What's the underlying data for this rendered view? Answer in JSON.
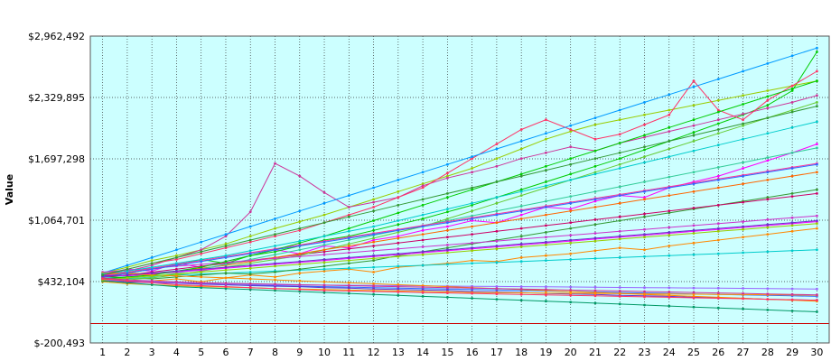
{
  "chart_data": {
    "type": "line",
    "title": "",
    "xlabel": "",
    "ylabel": "Value",
    "x": [
      1,
      2,
      3,
      4,
      5,
      6,
      7,
      8,
      9,
      10,
      11,
      12,
      13,
      14,
      15,
      16,
      17,
      18,
      19,
      20,
      21,
      22,
      23,
      24,
      25,
      26,
      27,
      28,
      29,
      30
    ],
    "x_tick_labels": [
      "1",
      "2",
      "3",
      "4",
      "5",
      "6",
      "7",
      "8",
      "9",
      "10",
      "11",
      "12",
      "13",
      "14",
      "15",
      "16",
      "17",
      "18",
      "19",
      "20",
      "21",
      "22",
      "23",
      "24",
      "25",
      "26",
      "27",
      "28",
      "29",
      "30"
    ],
    "y_tick_labels": [
      "$-200,493",
      "$432,104",
      "$1,064,701",
      "$1,697,298",
      "$2,329,895",
      "$2,962,492"
    ],
    "y_ticks": [
      -200493,
      432104,
      1064701,
      1697298,
      2329895,
      2962492
    ],
    "ylim": [
      -200493,
      2962492
    ],
    "xlim": [
      0.5,
      30.5
    ],
    "grid": true,
    "legend": "none",
    "plot_background": "#ccffff",
    "reference_line": {
      "value": 0,
      "color": "#cc0000"
    },
    "series_colors": [
      "#ff00ff",
      "#00cc00",
      "#ff8800",
      "#3366ff",
      "#99cc00",
      "#cc3399",
      "#00cccc",
      "#6633cc",
      "#ff3366",
      "#339933",
      "#ff9900",
      "#0099ff",
      "#cc0066",
      "#66cc33",
      "#9966ff",
      "#ff6600",
      "#33cc99",
      "#cc33cc",
      "#009966",
      "#ff3399"
    ],
    "series": [
      {
        "values": [
          500000,
          560000,
          540000,
          620000,
          580000,
          640000,
          700000,
          760000,
          720000,
          800000,
          780000,
          860000,
          900000,
          960000,
          1000000,
          1060000,
          1040000,
          1120000,
          1200000,
          1180000,
          1260000,
          1320000,
          1300000,
          1400000,
          1460000,
          1520000,
          1600000,
          1680000,
          1760000,
          1850000
        ]
      },
      {
        "values": [
          480000,
          520000,
          560000,
          600000,
          660000,
          620000,
          700000,
          740000,
          800000,
          860000,
          900000,
          960000,
          1020000,
          1080000,
          1150000,
          1220000,
          1300000,
          1380000,
          1460000,
          1540000,
          1620000,
          1700000,
          1790000,
          1880000,
          1970000,
          2060000,
          2150000,
          2250000,
          2400000,
          2800000
        ]
      },
      {
        "values": [
          450000,
          420000,
          440000,
          460000,
          430000,
          470000,
          500000,
          480000,
          520000,
          540000,
          560000,
          530000,
          580000,
          600000,
          620000,
          650000,
          640000,
          680000,
          700000,
          720000,
          750000,
          780000,
          760000,
          800000,
          830000,
          860000,
          890000,
          920000,
          950000,
          980000
        ]
      },
      {
        "values": [
          460000,
          440000,
          430000,
          420000,
          410000,
          400000,
          395000,
          390000,
          385000,
          380000,
          375000,
          370000,
          365000,
          360000,
          355000,
          350000,
          345000,
          340000,
          335000,
          330000,
          325000,
          320000,
          315000,
          310000,
          305000,
          300000,
          295000,
          290000,
          285000,
          280000
        ]
      },
      {
        "values": [
          520000,
          580000,
          650000,
          700000,
          760000,
          820000,
          900000,
          980000,
          1050000,
          1120000,
          1200000,
          1280000,
          1360000,
          1440000,
          1520000,
          1600000,
          1700000,
          1800000,
          1900000,
          1980000,
          2050000,
          2100000,
          2150000,
          2200000,
          2250000,
          2300000,
          2350000,
          2400000,
          2450000,
          2500000
        ]
      },
      {
        "values": [
          500000,
          540000,
          600000,
          680000,
          760000,
          900000,
          1150000,
          1650000,
          1520000,
          1350000,
          1200000,
          1250000,
          1300000,
          1420000,
          1500000,
          1560000,
          1620000,
          1700000,
          1760000,
          1820000,
          1780000,
          1860000,
          1920000,
          1980000,
          2040000,
          2100000,
          2160000,
          2220000,
          2280000,
          2350000
        ]
      },
      {
        "values": [
          470000,
          480000,
          490000,
          500000,
          510000,
          520000,
          530000,
          540000,
          550000,
          560000,
          570000,
          580000,
          590000,
          600000,
          610000,
          620000,
          630000,
          640000,
          650000,
          660000,
          670000,
          680000,
          690000,
          700000,
          710000,
          720000,
          730000,
          740000,
          750000,
          760000
        ]
      },
      {
        "values": [
          440000,
          430000,
          420000,
          415000,
          405000,
          400000,
          390000,
          385000,
          380000,
          370000,
          365000,
          355000,
          350000,
          345000,
          340000,
          330000,
          325000,
          320000,
          310000,
          305000,
          300000,
          290000,
          285000,
          280000,
          270000,
          265000,
          260000,
          250000,
          245000,
          240000
        ]
      },
      {
        "values": [
          510000,
          560000,
          620000,
          660000,
          720000,
          780000,
          840000,
          900000,
          960000,
          1040000,
          1120000,
          1200000,
          1300000,
          1400000,
          1550000,
          1700000,
          1850000,
          2000000,
          2100000,
          2000000,
          1900000,
          1950000,
          2050000,
          2150000,
          2500000,
          2200000,
          2100000,
          2300000,
          2450000,
          2600000
        ]
      },
      {
        "values": [
          490000,
          470000,
          460000,
          480000,
          500000,
          520000,
          510000,
          530000,
          560000,
          590000,
          620000,
          650000,
          700000,
          740000,
          780000,
          820000,
          860000,
          900000,
          940000,
          980000,
          1020000,
          1060000,
          1100000,
          1140000,
          1180000,
          1220000,
          1260000,
          1300000,
          1340000,
          1380000
        ]
      },
      {
        "values": [
          430000,
          410000,
          400000,
          390000,
          380000,
          375000,
          370000,
          360000,
          355000,
          350000,
          345000,
          340000,
          335000,
          330000,
          325000,
          320000,
          318000,
          316000,
          314000,
          312000,
          310000,
          308000,
          306000,
          304000,
          302000,
          300000,
          298000,
          296000,
          294000,
          292000
        ]
      },
      {
        "values": [
          520000,
          600000,
          680000,
          760000,
          840000,
          920000,
          1000000,
          1080000,
          1160000,
          1240000,
          1320000,
          1400000,
          1480000,
          1560000,
          1640000,
          1720000,
          1800000,
          1880000,
          1960000,
          2040000,
          2120000,
          2200000,
          2280000,
          2360000,
          2440000,
          2520000,
          2600000,
          2680000,
          2760000,
          2840000
        ]
      },
      {
        "values": [
          480000,
          500000,
          530000,
          560000,
          590000,
          620000,
          650000,
          680000,
          710000,
          740000,
          770000,
          800000,
          830000,
          860000,
          890000,
          920000,
          950000,
          980000,
          1010000,
          1040000,
          1070000,
          1100000,
          1130000,
          1160000,
          1190000,
          1220000,
          1250000,
          1280000,
          1310000,
          1340000
        ]
      },
      {
        "values": [
          460000,
          450000,
          470000,
          500000,
          540000,
          580000,
          620000,
          660000,
          700000,
          760000,
          820000,
          880000,
          940000,
          1000000,
          1080000,
          1160000,
          1240000,
          1320000,
          1400000,
          1480000,
          1560000,
          1640000,
          1720000,
          1800000,
          1880000,
          1960000,
          2040000,
          2120000,
          2200000,
          2280000
        ]
      },
      {
        "values": [
          450000,
          440000,
          430000,
          420000,
          415000,
          410000,
          405000,
          400000,
          398000,
          396000,
          394000,
          392000,
          390000,
          388000,
          386000,
          384000,
          382000,
          380000,
          378000,
          376000,
          374000,
          372000,
          370000,
          368000,
          366000,
          364000,
          362000,
          360000,
          358000,
          356000
        ]
      },
      {
        "values": [
          500000,
          520000,
          510000,
          540000,
          570000,
          600000,
          640000,
          680000,
          720000,
          760000,
          800000,
          840000,
          880000,
          920000,
          960000,
          1000000,
          1040000,
          1080000,
          1120000,
          1160000,
          1200000,
          1240000,
          1280000,
          1320000,
          1360000,
          1400000,
          1440000,
          1480000,
          1520000,
          1560000
        ]
      },
      {
        "values": [
          470000,
          460000,
          480000,
          520000,
          560000,
          610000,
          660000,
          710000,
          760000,
          810000,
          860000,
          910000,
          960000,
          1010000,
          1060000,
          1110000,
          1160000,
          1210000,
          1260000,
          1310000,
          1360000,
          1410000,
          1460000,
          1510000,
          1560000,
          1610000,
          1660000,
          1710000,
          1760000,
          1810000
        ]
      },
      {
        "values": [
          530000,
          550000,
          570000,
          590000,
          610000,
          630000,
          650000,
          670000,
          690000,
          710000,
          730000,
          750000,
          770000,
          790000,
          810000,
          830000,
          850000,
          870000,
          890000,
          910000,
          930000,
          950000,
          970000,
          990000,
          1010000,
          1030000,
          1050000,
          1070000,
          1090000,
          1110000
        ]
      },
      {
        "values": [
          440000,
          420000,
          400000,
          380000,
          370000,
          360000,
          350000,
          340000,
          330000,
          320000,
          310000,
          300000,
          290000,
          280000,
          270000,
          260000,
          250000,
          240000,
          230000,
          220000,
          210000,
          200000,
          190000,
          180000,
          170000,
          160000,
          150000,
          140000,
          130000,
          120000
        ]
      },
      {
        "values": [
          490000,
          530000,
          570000,
          610000,
          650000,
          690000,
          730000,
          770000,
          810000,
          850000,
          890000,
          930000,
          970000,
          1010000,
          1050000,
          1090000,
          1130000,
          1170000,
          1210000,
          1250000,
          1290000,
          1330000,
          1370000,
          1410000,
          1450000,
          1490000,
          1530000,
          1570000,
          1610000,
          1650000
        ]
      },
      {
        "values": [
          500000,
          490000,
          510000,
          530000,
          550000,
          570000,
          590000,
          610000,
          630000,
          650000,
          670000,
          690000,
          710000,
          730000,
          750000,
          770000,
          790000,
          810000,
          830000,
          850000,
          870000,
          890000,
          910000,
          930000,
          950000,
          970000,
          990000,
          1010000,
          1030000,
          1050000
        ]
      },
      {
        "values": [
          460000,
          480000,
          500000,
          540000,
          580000,
          640000,
          700000,
          760000,
          830000,
          900000,
          980000,
          1060000,
          1140000,
          1220000,
          1300000,
          1380000,
          1460000,
          1540000,
          1620000,
          1700000,
          1780000,
          1860000,
          1940000,
          2020000,
          2100000,
          2180000,
          2260000,
          2340000,
          2420000,
          2500000
        ]
      },
      {
        "values": [
          520000,
          510000,
          500000,
          490000,
          480000,
          470000,
          460000,
          450000,
          440000,
          430000,
          420000,
          410000,
          400000,
          390000,
          380000,
          370000,
          360000,
          350000,
          340000,
          330000,
          320000,
          310000,
          300000,
          290000,
          280000,
          270000,
          260000,
          250000,
          240000,
          230000
        ]
      },
      {
        "values": [
          480000,
          520000,
          560000,
          600000,
          640000,
          680000,
          720000,
          760000,
          800000,
          840000,
          880000,
          920000,
          960000,
          1000000,
          1040000,
          1080000,
          1120000,
          1160000,
          1200000,
          1240000,
          1280000,
          1320000,
          1360000,
          1400000,
          1440000,
          1480000,
          1520000,
          1560000,
          1600000,
          1640000
        ]
      },
      {
        "values": [
          450000,
          470000,
          490000,
          510000,
          530000,
          550000,
          570000,
          590000,
          610000,
          630000,
          650000,
          670000,
          690000,
          710000,
          730000,
          750000,
          770000,
          790000,
          810000,
          830000,
          850000,
          870000,
          890000,
          910000,
          930000,
          950000,
          970000,
          990000,
          1010000,
          1030000
        ]
      },
      {
        "values": [
          470000,
          450000,
          440000,
          430000,
          420000,
          415000,
          410000,
          405000,
          400000,
          395000,
          390000,
          385000,
          380000,
          375000,
          370000,
          365000,
          360000,
          355000,
          350000,
          345000,
          340000,
          335000,
          330000,
          325000,
          320000,
          315000,
          310000,
          305000,
          300000,
          295000
        ]
      },
      {
        "values": [
          510000,
          540000,
          580000,
          620000,
          660000,
          700000,
          750000,
          800000,
          850000,
          900000,
          950000,
          1000000,
          1060000,
          1120000,
          1180000,
          1240000,
          1300000,
          1360000,
          1420000,
          1480000,
          1540000,
          1600000,
          1660000,
          1720000,
          1780000,
          1840000,
          1900000,
          1960000,
          2020000,
          2080000
        ]
      },
      {
        "values": [
          490000,
          500000,
          520000,
          540000,
          560000,
          580000,
          600000,
          620000,
          640000,
          660000,
          680000,
          700000,
          720000,
          740000,
          760000,
          780000,
          800000,
          820000,
          840000,
          860000,
          880000,
          900000,
          920000,
          940000,
          960000,
          980000,
          1000000,
          1020000,
          1040000,
          1060000
        ]
      },
      {
        "values": [
          460000,
          440000,
          420000,
          400000,
          390000,
          380000,
          370000,
          360000,
          350000,
          340000,
          335000,
          330000,
          325000,
          320000,
          315000,
          310000,
          305000,
          300000,
          295000,
          290000,
          285000,
          280000,
          275000,
          270000,
          265000,
          260000,
          255000,
          250000,
          245000,
          240000
        ]
      },
      {
        "values": [
          500000,
          560000,
          620000,
          680000,
          740000,
          800000,
          860000,
          920000,
          980000,
          1040000,
          1100000,
          1160000,
          1220000,
          1280000,
          1340000,
          1400000,
          1460000,
          1520000,
          1580000,
          1640000,
          1700000,
          1760000,
          1820000,
          1880000,
          1940000,
          2000000,
          2060000,
          2120000,
          2180000,
          2240000
        ]
      }
    ]
  }
}
